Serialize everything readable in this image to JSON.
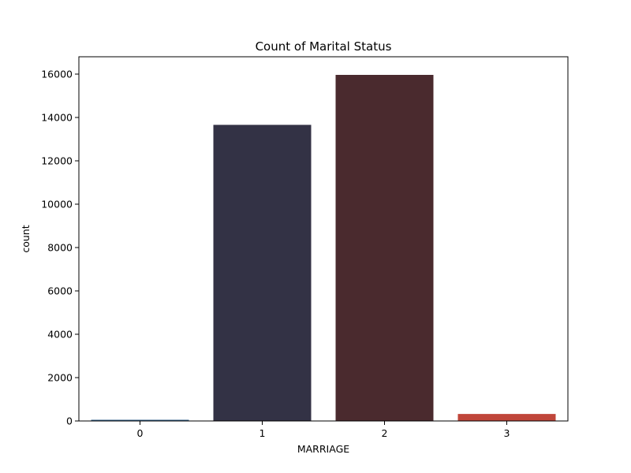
{
  "chart_data": {
    "type": "bar",
    "title": "Count of Marital Status",
    "xlabel": "MARRIAGE",
    "ylabel": "count",
    "categories": [
      "0",
      "1",
      "2",
      "3"
    ],
    "values": [
      54,
      13659,
      15964,
      323
    ],
    "colors": [
      "#2f5f8a",
      "#333245",
      "#4a2a2e",
      "#c0463a"
    ],
    "ylim": [
      0,
      16800
    ],
    "yticks": [
      0,
      2000,
      4000,
      6000,
      8000,
      10000,
      12000,
      14000,
      16000
    ],
    "ytick_labels": [
      "0",
      "2000",
      "4000",
      "6000",
      "8000",
      "10000",
      "12000",
      "14000",
      "16000"
    ],
    "grid": false,
    "legend": "none"
  }
}
